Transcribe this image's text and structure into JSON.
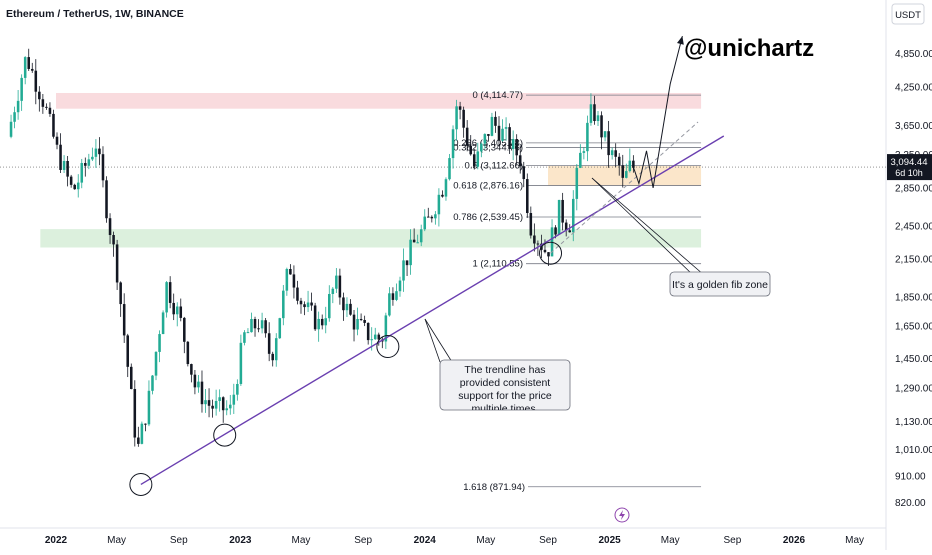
{
  "header": {
    "symbol_title": "Ethereum / TetherUS, 1W, BINANCE",
    "currency_button": "USDT"
  },
  "watermark": {
    "handle": "@unichartz"
  },
  "price_tag": {
    "price": "3,094.44",
    "countdown": "6d 10h"
  },
  "annotations": {
    "golden_zone": "It's a golden fib zone",
    "trendline_note": "The trendline has provided consistent support for the price multiple times."
  },
  "colors": {
    "bull": "#22ab94",
    "bear": "#131722",
    "resistance_zone": "#f8d7da",
    "support_zone": "#d8eed9",
    "fib_zone": "#fbe3c4",
    "trendline": "#6a3fb0",
    "price_line": "#555555"
  },
  "chart_data": {
    "type": "candlestick",
    "title": "Ethereum / TetherUS, 1W, BINANCE",
    "y_axis_unit": "USDT",
    "y_scale": "log",
    "ylim": [
      780,
      5600
    ],
    "y_ticks": [
      4850,
      4250,
      3650,
      3250,
      2850,
      2450,
      2150,
      1850,
      1650,
      1450,
      1290,
      1130,
      1010,
      910,
      820
    ],
    "x_ticks": [
      {
        "date": "2022-01-01",
        "label": "2022",
        "year": true
      },
      {
        "date": "2022-05-01",
        "label": "May",
        "year": false
      },
      {
        "date": "2022-09-01",
        "label": "Sep",
        "year": false
      },
      {
        "date": "2023-01-01",
        "label": "2023",
        "year": true
      },
      {
        "date": "2023-05-01",
        "label": "May",
        "year": false
      },
      {
        "date": "2023-09-01",
        "label": "Sep",
        "year": false
      },
      {
        "date": "2024-01-01",
        "label": "2024",
        "year": true
      },
      {
        "date": "2024-05-01",
        "label": "May",
        "year": false
      },
      {
        "date": "2024-09-01",
        "label": "Sep",
        "year": false
      },
      {
        "date": "2025-01-01",
        "label": "2025",
        "year": true
      },
      {
        "date": "2025-05-01",
        "label": "May",
        "year": false
      },
      {
        "date": "2025-09-01",
        "label": "Sep",
        "year": false
      },
      {
        "date": "2026-01-01",
        "label": "2026",
        "year": true
      },
      {
        "date": "2026-05-01",
        "label": "May",
        "year": false
      }
    ],
    "series": [
      {
        "date": "2021-10-01",
        "close": 3400
      },
      {
        "date": "2021-11-10",
        "close": 4800
      },
      {
        "date": "2021-12-15",
        "close": 4000
      },
      {
        "date": "2022-01-10",
        "close": 3300
      },
      {
        "date": "2022-02-10",
        "close": 2800
      },
      {
        "date": "2022-03-28",
        "close": 3400
      },
      {
        "date": "2022-05-09",
        "close": 2050
      },
      {
        "date": "2022-06-18",
        "close": 1000
      },
      {
        "date": "2022-07-12",
        "close": 1250
      },
      {
        "date": "2022-08-14",
        "close": 1950
      },
      {
        "date": "2022-09-10",
        "close": 1700
      },
      {
        "date": "2022-10-10",
        "close": 1300
      },
      {
        "date": "2022-11-09",
        "close": 1200
      },
      {
        "date": "2022-12-20",
        "close": 1180
      },
      {
        "date": "2023-01-15",
        "close": 1580
      },
      {
        "date": "2023-02-15",
        "close": 1680
      },
      {
        "date": "2023-03-10",
        "close": 1450
      },
      {
        "date": "2023-04-15",
        "close": 2100
      },
      {
        "date": "2023-05-10",
        "close": 1800
      },
      {
        "date": "2023-06-15",
        "close": 1650
      },
      {
        "date": "2023-07-15",
        "close": 1950
      },
      {
        "date": "2023-08-15",
        "close": 1700
      },
      {
        "date": "2023-09-15",
        "close": 1600
      },
      {
        "date": "2023-10-15",
        "close": 1560
      },
      {
        "date": "2023-10-30",
        "close": 1850
      },
      {
        "date": "2023-11-20",
        "close": 2050
      },
      {
        "date": "2023-12-20",
        "close": 2300
      },
      {
        "date": "2024-01-15",
        "close": 2500
      },
      {
        "date": "2024-02-15",
        "close": 2900
      },
      {
        "date": "2024-03-12",
        "close": 4000
      },
      {
        "date": "2024-04-15",
        "close": 3100
      },
      {
        "date": "2024-05-20",
        "close": 3700
      },
      {
        "date": "2024-06-15",
        "close": 3500
      },
      {
        "date": "2024-07-15",
        "close": 3200
      },
      {
        "date": "2024-08-05",
        "close": 2450
      },
      {
        "date": "2024-09-06",
        "close": 2200
      },
      {
        "date": "2024-09-30",
        "close": 2600
      },
      {
        "date": "2024-10-20",
        "close": 2450
      },
      {
        "date": "2024-11-10",
        "close": 3200
      },
      {
        "date": "2024-12-05",
        "close": 3900
      },
      {
        "date": "2024-12-16",
        "close": 3700
      },
      {
        "date": "2025-01-06",
        "close": 3300
      },
      {
        "date": "2025-01-27",
        "close": 3100
      },
      {
        "date": "2025-02-03",
        "close": 2900
      },
      {
        "date": "2025-02-17",
        "close": 3094
      }
    ],
    "projection_path": [
      {
        "date": "2025-02-17",
        "value": 3094
      },
      {
        "date": "2025-02-28",
        "value": 2900
      },
      {
        "date": "2025-03-15",
        "value": 3300
      },
      {
        "date": "2025-03-28",
        "value": 2850
      },
      {
        "date": "2025-05-01",
        "value": 4300
      },
      {
        "date": "2025-05-25",
        "value": 5200
      }
    ],
    "zones": [
      {
        "name": "resistance-zone",
        "from_date": "2022-01-01",
        "to_date": "2025-07-01",
        "low": 3900,
        "high": 4150
      },
      {
        "name": "support-zone",
        "from_date": "2021-12-01",
        "to_date": "2025-07-01",
        "low": 2250,
        "high": 2420
      },
      {
        "name": "golden-fib-zone",
        "from_date": "2024-09-01",
        "to_date": "2025-07-01",
        "low": 2876,
        "high": 3112
      }
    ],
    "fib_levels": [
      {
        "ratio": "0",
        "label": "0 (4,114.77)",
        "value": 4114.77,
        "from_date": "2024-03-12"
      },
      {
        "ratio": "0.236",
        "label": "0.236 (3,405.78)",
        "value": 3405.78,
        "from_date": "2024-03-12"
      },
      {
        "ratio": "0.382",
        "label": "0.382 (3,344.76)",
        "value": 3344.76,
        "from_date": "2024-03-12"
      },
      {
        "ratio": "0.5",
        "label": "0.5 (3,112.66)",
        "value": 3112.66,
        "from_date": "2024-03-12"
      },
      {
        "ratio": "0.618",
        "label": "0.618 (2,876.16)",
        "value": 2876.16,
        "from_date": "2024-03-12"
      },
      {
        "ratio": "0.786",
        "label": "0.786 (2,539.45)",
        "value": 2539.45,
        "from_date": "2024-03-12"
      },
      {
        "ratio": "1",
        "label": "1 (2,110.55)",
        "value": 2110.55,
        "from_date": "2024-03-12"
      },
      {
        "ratio": "1.618",
        "label": "1.618 (871.94)",
        "value": 871.94,
        "from_date": "2024-09-15"
      }
    ],
    "fib_end_date": "2025-07-01",
    "trendline": [
      {
        "date": "2022-06-18",
        "value": 880
      },
      {
        "date": "2025-08-15",
        "value": 3500
      }
    ],
    "dashed_line": [
      {
        "date": "2024-09-06",
        "value": 2200
      },
      {
        "date": "2025-06-25",
        "value": 3700
      }
    ],
    "touch_points": [
      {
        "date": "2022-06-18",
        "value": 880
      },
      {
        "date": "2022-12-01",
        "value": 1070
      },
      {
        "date": "2023-10-20",
        "value": 1520
      },
      {
        "date": "2024-09-06",
        "value": 2200
      }
    ],
    "last_price": 3094.44
  }
}
